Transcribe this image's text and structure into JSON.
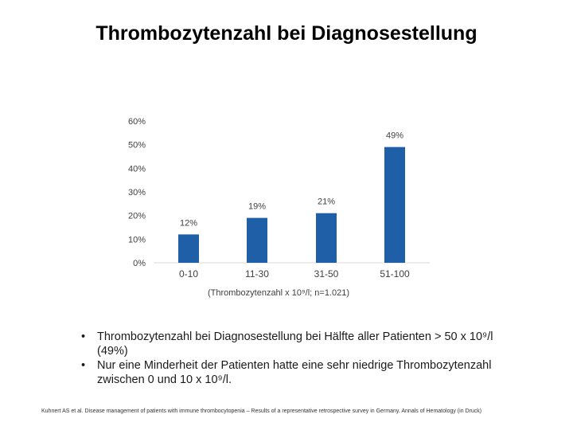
{
  "chart_data": {
    "type": "bar",
    "title": "Thrombozytenzahl bei Diagnosestellung",
    "categories": [
      "0-10",
      "11-30",
      "31-50",
      "51-100"
    ],
    "values": [
      12,
      19,
      21,
      49
    ],
    "data_labels": [
      "12%",
      "19%",
      "21%",
      "49%"
    ],
    "xlabel": "(Thrombozytenzahl x 10⁹/l; n=1.021)",
    "ylabel": "",
    "ylim": [
      0,
      60
    ],
    "yticks": [
      "0%",
      "10%",
      "20%",
      "30%",
      "40%",
      "50%",
      "60%"
    ],
    "grid": false,
    "legend": "none",
    "bar_color": "#1f5fa8"
  },
  "bullets": [
    "Thrombozytenzahl bei Diagnosestellung bei Hälfte aller Patienten > 50 x 10⁹/l (49%)",
    "Nur eine Minderheit der Patienten hatte eine sehr niedrige Thrombozytenzahl zwischen 0 und 10 x 10⁹/l."
  ],
  "bullet_symbol": "•",
  "footnote": "Kuhnert AS et al. Disease management of patients with immune thrombocytopenia – Results of a representative retrospective survey in Germany. Annals of Hematology (in Druck)"
}
